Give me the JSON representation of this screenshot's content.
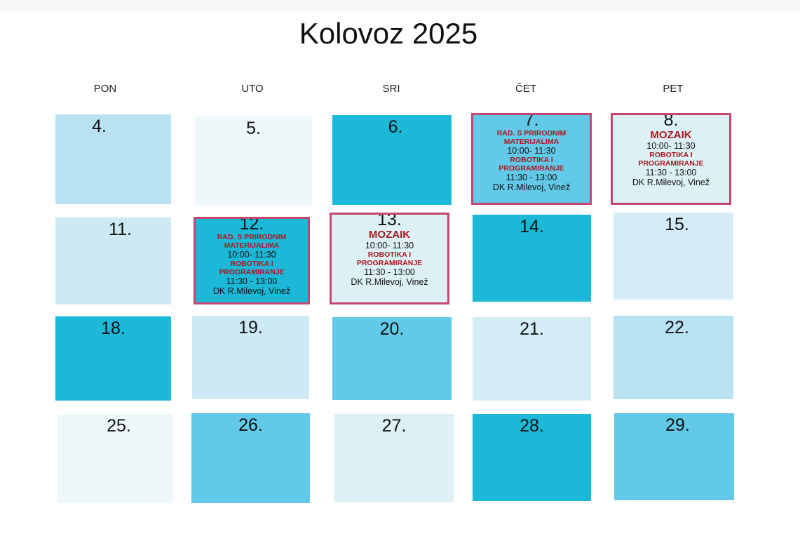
{
  "header": {
    "title": "Kolovoz 2025"
  },
  "weekdays": [
    "PON",
    "UTO",
    "SRI",
    "ČET",
    "PET"
  ],
  "days": [
    {
      "day": "4."
    },
    {
      "day": "5."
    },
    {
      "day": "6."
    },
    {
      "day": "7.",
      "events": [
        {
          "title": "RAD. S PRIRODNIM MATERIJALIMA",
          "time": "10:00- 11:30"
        },
        {
          "title": "ROBOTIKA I PROGRAMIRANJE",
          "time": "11:30 - 13:00"
        }
      ],
      "location": "DK R.Milevoj, Vinež"
    },
    {
      "day": "8.",
      "events": [
        {
          "title": "MOZAIK",
          "time": "10:00- 11:30"
        },
        {
          "title": "ROBOTIKA I PROGRAMIRANJE",
          "time": "11:30 - 13:00"
        }
      ],
      "location": "DK R.Milevoj, Vinež"
    },
    {
      "day": "11."
    },
    {
      "day": "12.",
      "events": [
        {
          "title": "RAD. S PRIRODNIM MATERIJALIMA",
          "time": "10:00- 11:30"
        },
        {
          "title": "ROBOTIKA I PROGRAMIRANJE",
          "time": "11:30 - 13:00"
        }
      ],
      "location": "DK R.Milevoj, Vinež"
    },
    {
      "day": "13.",
      "events": [
        {
          "title": "MOZAIK",
          "time": "10:00- 11:30"
        },
        {
          "title": "ROBOTIKA I PROGRAMIRANJE",
          "time": "11:30 - 13:00"
        }
      ],
      "location": "DK R.Milevoj, Vinež"
    },
    {
      "day": "14."
    },
    {
      "day": "15."
    },
    {
      "day": "18."
    },
    {
      "day": "19."
    },
    {
      "day": "20."
    },
    {
      "day": "21."
    },
    {
      "day": "22."
    },
    {
      "day": "25."
    },
    {
      "day": "26."
    },
    {
      "day": "27."
    },
    {
      "day": "28."
    },
    {
      "day": "29."
    }
  ]
}
